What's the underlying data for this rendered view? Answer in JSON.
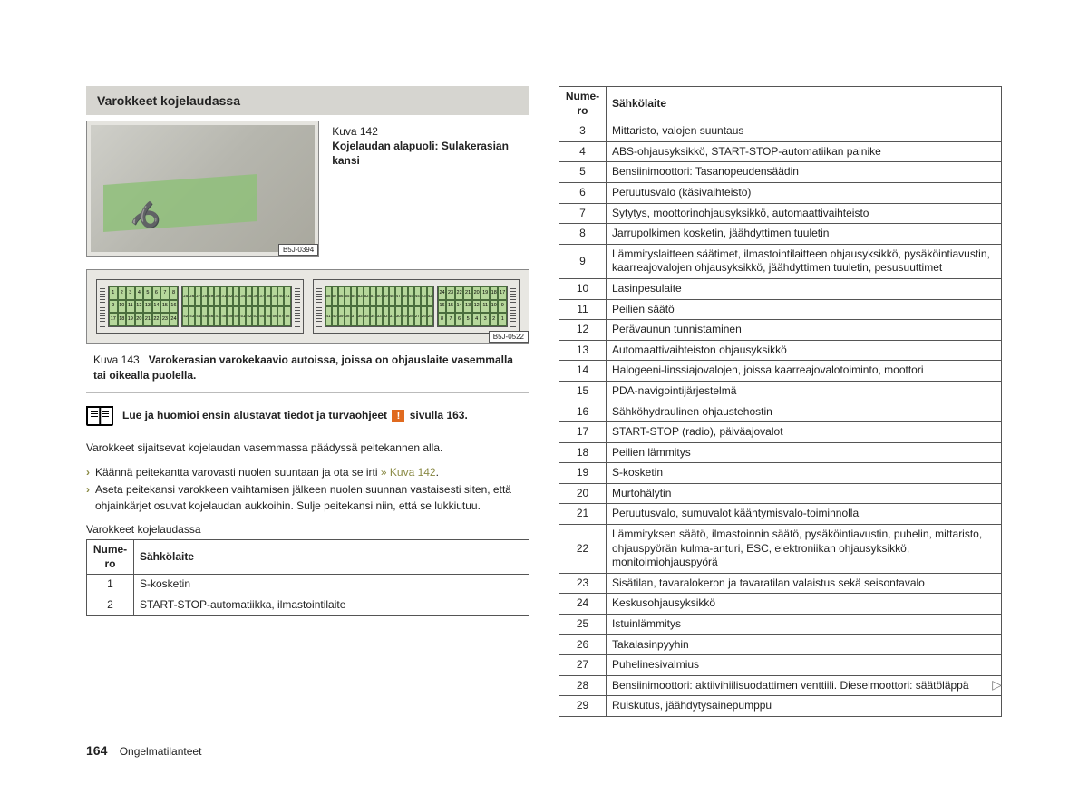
{
  "section_title": "Varokkeet kojelaudassa",
  "figure142": {
    "label": "Kuva 142",
    "caption": "Kojelaudan alapuoli: Sulakerasian kansi",
    "code": "B5J-0394"
  },
  "figure143": {
    "label": "Kuva 143",
    "caption": "Varokerasian varokekaavio autoissa, joissa on ohjauslaite vasemmalla tai oikealla puolella.",
    "code": "B5J-0522",
    "left_block": {
      "rows": [
        [
          "1",
          "2",
          "3",
          "4",
          "5",
          "6",
          "7",
          "8"
        ],
        [
          "9",
          "10",
          "11",
          "12",
          "13",
          "14",
          "15",
          "16"
        ],
        [
          "17",
          "18",
          "19",
          "20",
          "21",
          "22",
          "23",
          "24"
        ]
      ]
    },
    "center_block": {
      "rows": [
        [
          "25",
          "26",
          "27",
          "28",
          "29",
          "30",
          "31",
          "32",
          "33",
          "34",
          "35",
          "36",
          "37",
          "38",
          "39",
          "40",
          "41"
        ],
        [
          "42",
          "43",
          "44",
          "45",
          "46",
          "47",
          "48",
          "49",
          "50",
          "51",
          "52",
          "53",
          "54",
          "55",
          "56",
          "57",
          "58"
        ]
      ]
    },
    "right_center_block": {
      "rows": [
        [
          "58",
          "57",
          "56",
          "55",
          "54",
          "53",
          "52",
          "51",
          "50",
          "49",
          "48",
          "47",
          "46",
          "45",
          "44",
          "43",
          "42"
        ],
        [
          "41",
          "40",
          "39",
          "38",
          "37",
          "36",
          "35",
          "34",
          "33",
          "32",
          "31",
          "30",
          "29",
          "28",
          "27",
          "26",
          "25"
        ]
      ]
    },
    "right_block": {
      "rows": [
        [
          "24",
          "23",
          "22",
          "21",
          "20",
          "19",
          "18",
          "17"
        ],
        [
          "16",
          "15",
          "14",
          "13",
          "12",
          "11",
          "10",
          "9"
        ],
        [
          "8",
          "7",
          "6",
          "5",
          "4",
          "3",
          "2",
          "1"
        ]
      ]
    }
  },
  "info_line_pre": "Lue ja huomioi ensin alustavat tiedot ja turvaohjeet",
  "info_line_post": "sivulla 163.",
  "paragraph": "Varokkeet sijaitsevat kojelaudan vasemmassa päädyssä peitekannen alla.",
  "bullets": [
    {
      "pre": "Käännä peitekantta varovasti nuolen suuntaan ja ota se irti ",
      "link": "» Kuva 142",
      "post": "."
    },
    {
      "pre": "Aseta peitekansi varokkeen vaihtamisen jälkeen nuolen suunnan vastaisesti siten, että ohjainkärjet osuvat kojelaudan aukkoihin. Sulje peitekansi niin, että se lukkiutuu.",
      "link": "",
      "post": ""
    }
  ],
  "table1_heading": "Varokkeet kojelaudassa",
  "table_header": {
    "num1": "Nume-",
    "num2": "ro",
    "device": "Sähkölaite"
  },
  "table1_rows": [
    [
      "1",
      "S-kosketin"
    ],
    [
      "2",
      "START-STOP-automatiikka, ilmastointilaite"
    ]
  ],
  "table2_rows": [
    [
      "3",
      "Mittaristo, valojen suuntaus"
    ],
    [
      "4",
      "ABS-ohjausyksikkö, START-STOP-automatiikan painike"
    ],
    [
      "5",
      "Bensiinimoottori: Tasanopeudensäädin"
    ],
    [
      "6",
      "Peruutusvalo (käsivaihteisto)"
    ],
    [
      "7",
      "Sytytys, moottorinohjausyksikkö, automaattivaihteisto"
    ],
    [
      "8",
      "Jarrupolkimen kosketin, jäähdyttimen tuuletin"
    ],
    [
      "9",
      "Lämmityslaitteen säätimet, ilmastointilaitteen ohjausyksikkö, pysäköintiavustin, kaarreajovalojen ohjausyksikkö, jäähdyttimen tuuletin, pesusuuttimet"
    ],
    [
      "10",
      "Lasinpesulaite"
    ],
    [
      "11",
      "Peilien säätö"
    ],
    [
      "12",
      "Perävaunun tunnistaminen"
    ],
    [
      "13",
      "Automaattivaihteiston ohjausyksikkö"
    ],
    [
      "14",
      "Halogeeni-linssiajovalojen, joissa kaarreajovalotoiminto, moottori"
    ],
    [
      "15",
      "PDA-navigointijärjestelmä"
    ],
    [
      "16",
      "Sähköhydraulinen ohjaustehostin"
    ],
    [
      "17",
      "START-STOP (radio), päiväajovalot"
    ],
    [
      "18",
      "Peilien lämmitys"
    ],
    [
      "19",
      "S-kosketin"
    ],
    [
      "20",
      "Murtohälytin"
    ],
    [
      "21",
      "Peruutusvalo, sumuvalot kääntymisvalo-toiminnolla"
    ],
    [
      "22",
      "Lämmityksen säätö, ilmastoinnin säätö, pysäköintiavustin, puhelin, mittaristo, ohjauspyörän kulma-anturi, ESC, elektroniikan ohjausyksikkö, monitoimiohjauspyörä"
    ],
    [
      "23",
      "Sisätilan, tavaralokeron ja tavaratilan valaistus sekä seisontavalo"
    ],
    [
      "24",
      "Keskusohjausyksikkö"
    ],
    [
      "25",
      "Istuinlämmitys"
    ],
    [
      "26",
      "Takalasinpyyhin"
    ],
    [
      "27",
      "Puhelinesivalmius"
    ],
    [
      "28",
      "Bensiinimoottori: aktiivihiilisuodattimen venttiili. Dieselmoottori: säätöläppä"
    ],
    [
      "29",
      "Ruiskutus, jäähdytysainepumppu"
    ]
  ],
  "footer": {
    "page": "164",
    "section": "Ongelmatilanteet"
  }
}
